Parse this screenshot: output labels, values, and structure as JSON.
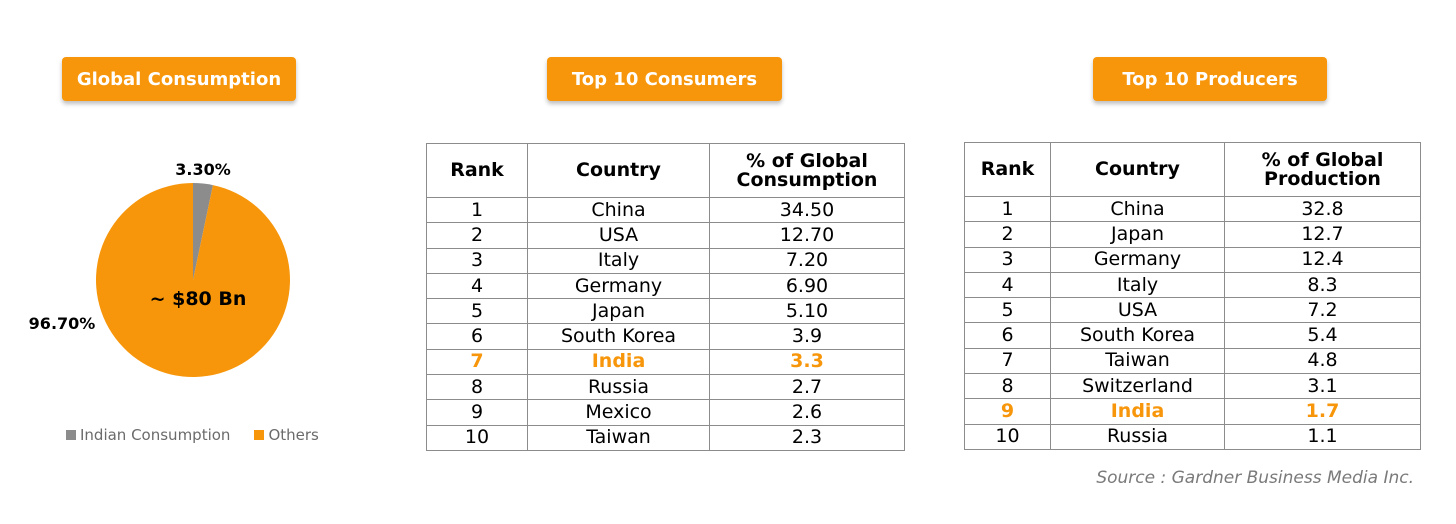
{
  "colors": {
    "accent": "#f7960a",
    "gray_slice": "#8c8c8c",
    "legend_text": "#6b6b6b"
  },
  "pie_section": {
    "heading": "Global Consumption",
    "center_label": "~ $80 Bn",
    "slice_labels": [
      "3.30%",
      "96.70%"
    ]
  },
  "chart_data": {
    "type": "pie",
    "title": "Global Consumption",
    "labels": [
      "Indian Consumption",
      "Others"
    ],
    "values": [
      3.3,
      96.7
    ],
    "colors": [
      "#8c8c8c",
      "#f7960a"
    ],
    "legend_position": "bottom"
  },
  "consumers": {
    "heading": "Top 10 Consumers",
    "headers": [
      "Rank",
      "Country",
      "% of Global Consumption"
    ],
    "rows": [
      [
        "1",
        "China",
        "34.50"
      ],
      [
        "2",
        "USA",
        "12.70"
      ],
      [
        "3",
        "Italy",
        "7.20"
      ],
      [
        "4",
        "Germany",
        "6.90"
      ],
      [
        "5",
        "Japan",
        "5.10"
      ],
      [
        "6",
        "South Korea",
        "3.9"
      ],
      [
        "7",
        "India",
        "3.3"
      ],
      [
        "8",
        "Russia",
        "2.7"
      ],
      [
        "9",
        "Mexico",
        "2.6"
      ],
      [
        "10",
        "Taiwan",
        "2.3"
      ]
    ],
    "highlight_row": 6
  },
  "producers": {
    "heading": "Top 10 Producers",
    "headers": [
      "Rank",
      "Country",
      "% of Global Production"
    ],
    "rows": [
      [
        "1",
        "China",
        "32.8"
      ],
      [
        "2",
        "Japan",
        "12.7"
      ],
      [
        "3",
        "Germany",
        "12.4"
      ],
      [
        "4",
        "Italy",
        "8.3"
      ],
      [
        "5",
        "USA",
        "7.2"
      ],
      [
        "6",
        "South Korea",
        "5.4"
      ],
      [
        "7",
        "Taiwan",
        "4.8"
      ],
      [
        "8",
        "Switzerland",
        "3.1"
      ],
      [
        "9",
        "India",
        "1.7"
      ],
      [
        "10",
        "Russia",
        "1.1"
      ]
    ],
    "highlight_row": 8
  },
  "source": "Source : Gardner Business Media Inc."
}
